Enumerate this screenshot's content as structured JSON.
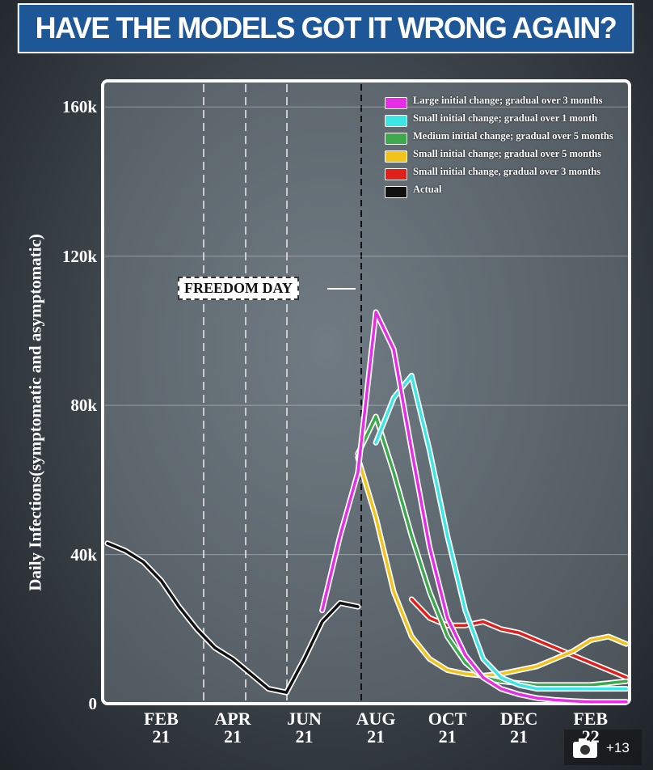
{
  "chart_data": {
    "type": "line",
    "title": "HAVE THE MODELS GOT IT WRONG AGAIN?",
    "ylabel": "Daily Infections(symptomatic and asymptomatic)",
    "annotation": "FREEDOM DAY",
    "categories": [
      null,
      null,
      null,
      "FEB\n21",
      null,
      null,
      null,
      "APR\n21",
      null,
      null,
      null,
      "JUN\n21",
      null,
      null,
      null,
      "AUG\n21",
      null,
      null,
      null,
      "OCT\n21",
      null,
      null,
      null,
      "DEC\n21",
      null,
      null,
      null,
      "FEB\n22",
      null,
      null
    ],
    "ylim": [
      0,
      167000
    ],
    "yticks": [
      0,
      {
        "value": 40000,
        "label": "40k"
      },
      {
        "value": 80000,
        "label": "80k"
      },
      {
        "value": 120000,
        "label": "120k"
      },
      {
        "value": 160000,
        "label": "160k"
      }
    ],
    "grid": true,
    "legend": "top-right",
    "series": [
      {
        "name": "Large initial change; gradual over 3 months",
        "color": "#e62ee6",
        "values": [
          null,
          null,
          null,
          null,
          null,
          null,
          null,
          null,
          null,
          null,
          null,
          null,
          25000,
          45000,
          62000,
          105000,
          95000,
          68000,
          42000,
          23000,
          13000,
          7000,
          4000,
          2500,
          1500,
          1000,
          700,
          500,
          500,
          500
        ]
      },
      {
        "name": "Small initial change; gradual over 1 month",
        "color": "#3de6e6",
        "values": [
          null,
          null,
          null,
          null,
          null,
          null,
          null,
          null,
          null,
          null,
          null,
          null,
          null,
          null,
          null,
          70000,
          82000,
          88000,
          68000,
          45000,
          25000,
          12000,
          7000,
          5000,
          4000,
          4000,
          4000,
          4000,
          4000,
          4000
        ]
      },
      {
        "name": "Medium initial change; gradual over 5 months",
        "color": "#3caa4a",
        "values": [
          null,
          null,
          null,
          null,
          null,
          null,
          null,
          null,
          null,
          null,
          null,
          null,
          null,
          null,
          67000,
          77000,
          62000,
          45000,
          30000,
          18000,
          11000,
          7000,
          6000,
          5500,
          5000,
          5000,
          5000,
          5000,
          5500,
          6000
        ]
      },
      {
        "name": "Small initial change; gradual over 5 months",
        "color": "#f2c21d",
        "values": [
          null,
          null,
          null,
          null,
          null,
          null,
          null,
          null,
          null,
          null,
          null,
          null,
          null,
          null,
          66000,
          50000,
          30000,
          18000,
          12000,
          9000,
          8000,
          7500,
          8000,
          9000,
          10000,
          12000,
          14000,
          17000,
          18000,
          16000
        ]
      },
      {
        "name": "Small initial change, gradual over 3 months",
        "color": "#e0201b",
        "values": [
          null,
          null,
          null,
          null,
          null,
          null,
          null,
          null,
          null,
          null,
          null,
          null,
          null,
          null,
          null,
          null,
          null,
          28000,
          23000,
          21000,
          21000,
          22000,
          20000,
          19000,
          17000,
          15000,
          13000,
          11000,
          9000,
          7000
        ]
      },
      {
        "name": "Actual",
        "color": "#111111",
        "values": [
          43000,
          41000,
          38000,
          33000,
          26000,
          20000,
          15000,
          12000,
          8000,
          4000,
          3000,
          12000,
          22000,
          27000,
          26000,
          null,
          null,
          null,
          null,
          null,
          null,
          null,
          null,
          null,
          null,
          null,
          null,
          null,
          null,
          null
        ]
      }
    ]
  },
  "overlay": {
    "photo_count": "+13"
  }
}
